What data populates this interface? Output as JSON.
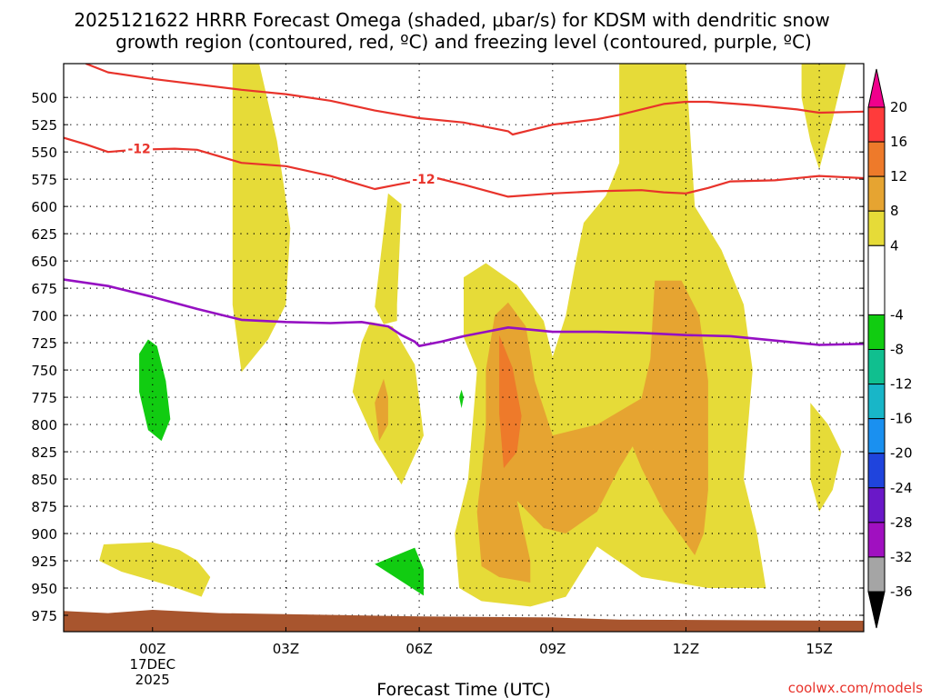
{
  "chart_data": {
    "type": "contour",
    "title_line1": "2025121622 HRRR Forecast Omega (shaded, μbar/s) for KDSM with dendritic snow",
    "title_line2": "growth region (contoured, red, ºC) and freezing level (contoured, purple, ºC)",
    "xlabel": "Forecast Time (UTC)",
    "credit": "coolwx.com/models",
    "x_range_hours": [
      -2.0,
      16.0
    ],
    "y_range_hpa": [
      469,
      990
    ],
    "x_ticks": [
      {
        "hour": 0,
        "label": "00Z",
        "sub1": "17DEC",
        "sub2": "2025"
      },
      {
        "hour": 3,
        "label": "03Z"
      },
      {
        "hour": 6,
        "label": "06Z"
      },
      {
        "hour": 9,
        "label": "09Z"
      },
      {
        "hour": 12,
        "label": "12Z"
      },
      {
        "hour": 15,
        "label": "15Z"
      }
    ],
    "y_ticks": [
      500,
      525,
      550,
      575,
      600,
      625,
      650,
      675,
      700,
      725,
      750,
      775,
      800,
      825,
      850,
      875,
      900,
      925,
      950,
      975
    ],
    "colorbar": {
      "levels": [
        20,
        16,
        12,
        8,
        4,
        -4,
        -8,
        -12,
        -16,
        -20,
        -24,
        -28,
        -32,
        -36
      ],
      "bands": [
        {
          "from": 16,
          "to": 20,
          "color": "#ff3b3b"
        },
        {
          "from": 12,
          "to": 16,
          "color": "#ee7a2a"
        },
        {
          "from": 8,
          "to": 12,
          "color": "#e6a431"
        },
        {
          "from": 4,
          "to": 8,
          "color": "#e6db38"
        },
        {
          "from": -4,
          "to": 4,
          "color": "#ffffff"
        },
        {
          "from": -8,
          "to": -4,
          "color": "#11cc11"
        },
        {
          "from": -12,
          "to": -8,
          "color": "#10bf8f"
        },
        {
          "from": -16,
          "to": -12,
          "color": "#18b6c8"
        },
        {
          "from": -20,
          "to": -16,
          "color": "#1a90f0"
        },
        {
          "from": -24,
          "to": -20,
          "color": "#1f44dd"
        },
        {
          "from": -28,
          "to": -24,
          "color": "#6a18c8"
        },
        {
          "from": -32,
          "to": -28,
          "color": "#a010c0"
        },
        {
          "from": -36,
          "to": -32,
          "color": "#a5a5a5"
        }
      ],
      "top_arrow_color": "#f0008c",
      "bottom_arrow_color": "#000000"
    },
    "omega_regions": [
      {
        "name": "omega-4-8-upper-left",
        "color": "#e6db38",
        "points": [
          [
            1.8,
            469
          ],
          [
            2.4,
            469
          ],
          [
            2.8,
            540
          ],
          [
            3.1,
            620
          ],
          [
            3.0,
            690
          ],
          [
            2.6,
            722
          ],
          [
            2.0,
            752
          ],
          [
            1.8,
            690
          ],
          [
            1.8,
            590
          ]
        ]
      },
      {
        "name": "omega-4-8-center-spike",
        "color": "#e6db38",
        "points": [
          [
            5.0,
            692
          ],
          [
            5.3,
            588
          ],
          [
            5.6,
            598
          ],
          [
            5.5,
            690
          ],
          [
            5.5,
            705
          ],
          [
            5.2,
            708
          ]
        ]
      },
      {
        "name": "omega-4-8-center-blob",
        "color": "#e6db38",
        "points": [
          [
            4.9,
            706
          ],
          [
            5.4,
            710
          ],
          [
            5.9,
            745
          ],
          [
            6.1,
            810
          ],
          [
            5.6,
            855
          ],
          [
            5.0,
            815
          ],
          [
            4.5,
            770
          ],
          [
            4.7,
            725
          ]
        ]
      },
      {
        "name": "omega-4-8-main",
        "color": "#e6db38",
        "points": [
          [
            10.5,
            469
          ],
          [
            12.0,
            469
          ],
          [
            12.2,
            600
          ],
          [
            12.8,
            640
          ],
          [
            13.3,
            690
          ],
          [
            13.5,
            750
          ],
          [
            13.3,
            850
          ],
          [
            13.6,
            900
          ],
          [
            13.8,
            950
          ],
          [
            12.5,
            950
          ],
          [
            11.0,
            940
          ],
          [
            10.0,
            912
          ],
          [
            9.3,
            958
          ],
          [
            8.5,
            967
          ],
          [
            7.4,
            962
          ],
          [
            6.9,
            950
          ],
          [
            6.8,
            900
          ],
          [
            7.1,
            850
          ],
          [
            7.2,
            800
          ],
          [
            7.3,
            750
          ],
          [
            7.0,
            720
          ],
          [
            7.0,
            665
          ],
          [
            7.5,
            652
          ],
          [
            8.2,
            672
          ],
          [
            8.8,
            705
          ],
          [
            9.0,
            738
          ],
          [
            9.3,
            700
          ],
          [
            9.5,
            655
          ],
          [
            9.7,
            615
          ],
          [
            10.2,
            590
          ],
          [
            10.5,
            560
          ]
        ]
      },
      {
        "name": "omega-4-8-right-top",
        "color": "#e6db38",
        "points": [
          [
            14.6,
            469
          ],
          [
            15.6,
            469
          ],
          [
            15.3,
            520
          ],
          [
            15.0,
            566
          ],
          [
            14.8,
            540
          ],
          [
            14.6,
            500
          ]
        ]
      },
      {
        "name": "omega-4-8-right-low",
        "color": "#e6db38",
        "points": [
          [
            14.8,
            780
          ],
          [
            15.2,
            800
          ],
          [
            15.5,
            825
          ],
          [
            15.3,
            860
          ],
          [
            15.0,
            880
          ],
          [
            14.8,
            850
          ]
        ]
      },
      {
        "name": "omega-4-8-lower-left",
        "color": "#e6db38",
        "points": [
          [
            -1.1,
            910
          ],
          [
            0.0,
            908
          ],
          [
            0.6,
            915
          ],
          [
            1.0,
            925
          ],
          [
            1.3,
            940
          ],
          [
            1.1,
            958
          ],
          [
            0.4,
            948
          ],
          [
            -0.7,
            935
          ],
          [
            -1.2,
            925
          ]
        ]
      },
      {
        "name": "omega-8-12-left",
        "color": "#e6a431",
        "points": [
          [
            7.4,
            930
          ],
          [
            7.3,
            880
          ],
          [
            7.4,
            845
          ],
          [
            7.5,
            800
          ],
          [
            7.5,
            750
          ],
          [
            7.7,
            700
          ],
          [
            8.0,
            688
          ],
          [
            8.4,
            710
          ],
          [
            8.6,
            760
          ],
          [
            9.0,
            810
          ],
          [
            10.0,
            800
          ],
          [
            11.0,
            776
          ],
          [
            11.2,
            740
          ],
          [
            11.3,
            668
          ],
          [
            11.9,
            668
          ],
          [
            12.3,
            700
          ],
          [
            12.5,
            760
          ],
          [
            12.5,
            810
          ],
          [
            12.5,
            860
          ],
          [
            12.4,
            900
          ],
          [
            12.2,
            920
          ],
          [
            11.5,
            880
          ],
          [
            11.0,
            840
          ],
          [
            10.8,
            820
          ],
          [
            10.5,
            840
          ],
          [
            10.0,
            880
          ],
          [
            9.3,
            900
          ],
          [
            8.8,
            895
          ],
          [
            8.2,
            870
          ],
          [
            8.5,
            925
          ],
          [
            8.5,
            945
          ],
          [
            7.8,
            940
          ]
        ]
      },
      {
        "name": "omega-8-12-center-small",
        "color": "#e6a431",
        "points": [
          [
            5.2,
            758
          ],
          [
            5.3,
            775
          ],
          [
            5.3,
            800
          ],
          [
            5.1,
            815
          ],
          [
            5.0,
            780
          ]
        ]
      },
      {
        "name": "omega-12-16-left",
        "color": "#ee7a2a",
        "points": [
          [
            7.8,
            718
          ],
          [
            8.1,
            748
          ],
          [
            8.3,
            792
          ],
          [
            8.2,
            825
          ],
          [
            7.9,
            840
          ],
          [
            7.8,
            790
          ]
        ]
      },
      {
        "name": "omega-neg4-neg8-left",
        "color": "#11cc11",
        "points": [
          [
            -0.1,
            722
          ],
          [
            0.1,
            728
          ],
          [
            0.3,
            760
          ],
          [
            0.4,
            795
          ],
          [
            0.2,
            815
          ],
          [
            -0.1,
            805
          ],
          [
            -0.3,
            770
          ],
          [
            -0.3,
            735
          ]
        ]
      },
      {
        "name": "omega-neg4-neg8-center",
        "color": "#11cc11",
        "points": [
          [
            5.0,
            928
          ],
          [
            5.9,
            913
          ],
          [
            6.1,
            933
          ],
          [
            6.1,
            957
          ]
        ]
      },
      {
        "name": "omega-neg4-neg8-speck",
        "color": "#11cc11",
        "points": [
          [
            6.95,
            768
          ],
          [
            7.0,
            775
          ],
          [
            6.95,
            785
          ],
          [
            6.9,
            775
          ]
        ]
      }
    ],
    "terrain": {
      "color": "#a8552e",
      "points": [
        [
          -2.0,
          971
        ],
        [
          -1.0,
          973
        ],
        [
          0.0,
          970
        ],
        [
          1.5,
          973
        ],
        [
          4.5,
          975
        ],
        [
          6.0,
          976
        ],
        [
          9.0,
          977
        ],
        [
          10.5,
          979
        ],
        [
          16.0,
          980
        ],
        [
          16.0,
          990
        ],
        [
          -2.0,
          990
        ]
      ]
    },
    "red_contours": [
      {
        "name": "red-contour-upper",
        "color": "#e8332b",
        "points": [
          [
            -1.5,
            469
          ],
          [
            -1.0,
            477
          ],
          [
            0.0,
            483
          ],
          [
            2.0,
            493
          ],
          [
            3.0,
            497
          ],
          [
            4.0,
            503
          ],
          [
            5.0,
            512
          ],
          [
            6.0,
            519
          ],
          [
            7.0,
            523
          ],
          [
            8.0,
            531
          ],
          [
            8.1,
            534
          ],
          [
            8.5,
            530
          ],
          [
            9.0,
            525
          ],
          [
            10.0,
            520
          ],
          [
            10.5,
            516
          ],
          [
            11.5,
            506
          ],
          [
            12.0,
            504
          ],
          [
            12.5,
            504
          ],
          [
            13.5,
            507
          ],
          [
            14.5,
            511
          ],
          [
            15.0,
            514
          ],
          [
            16.0,
            513
          ]
        ]
      },
      {
        "name": "red-contour-lower",
        "color": "#e8332b",
        "points": [
          [
            -2.0,
            537
          ],
          [
            -1.5,
            543
          ],
          [
            -1.0,
            550
          ],
          [
            -0.4,
            548
          ],
          [
            0.5,
            547
          ],
          [
            1.0,
            548
          ],
          [
            2.0,
            560
          ],
          [
            3.0,
            563
          ],
          [
            4.0,
            572
          ],
          [
            5.0,
            584
          ],
          [
            5.5,
            580
          ],
          [
            5.9,
            577
          ],
          [
            6.4,
            574
          ],
          [
            7.0,
            580
          ],
          [
            8.0,
            591
          ],
          [
            9.0,
            588
          ],
          [
            10.0,
            586
          ],
          [
            11.0,
            585
          ],
          [
            11.5,
            587
          ],
          [
            12.0,
            588
          ],
          [
            12.5,
            583
          ],
          [
            13.0,
            577
          ],
          [
            14.0,
            576
          ],
          [
            15.0,
            572
          ],
          [
            15.5,
            573
          ],
          [
            16.0,
            574
          ]
        ]
      }
    ],
    "red_labels": [
      {
        "hour": -0.3,
        "hpa": 547,
        "text": "-12"
      },
      {
        "hour": 6.1,
        "hpa": 575,
        "text": "-12"
      }
    ],
    "purple_contour": {
      "name": "purple-freezing-level",
      "color": "#9510c2",
      "points": [
        [
          -2.0,
          667
        ],
        [
          -1.0,
          673
        ],
        [
          0.0,
          683
        ],
        [
          1.0,
          694
        ],
        [
          2.0,
          704
        ],
        [
          3.0,
          706
        ],
        [
          4.0,
          707
        ],
        [
          4.7,
          706
        ],
        [
          5.3,
          710
        ],
        [
          5.6,
          718
        ],
        [
          5.9,
          724
        ],
        [
          6.0,
          728
        ],
        [
          6.5,
          724
        ],
        [
          7.0,
          719
        ],
        [
          7.5,
          715
        ],
        [
          8.0,
          711
        ],
        [
          8.5,
          713
        ],
        [
          9.0,
          715
        ],
        [
          10.0,
          715
        ],
        [
          11.0,
          716
        ],
        [
          12.0,
          718
        ],
        [
          13.0,
          719
        ],
        [
          14.0,
          723
        ],
        [
          15.0,
          727
        ],
        [
          16.0,
          726
        ]
      ]
    }
  }
}
